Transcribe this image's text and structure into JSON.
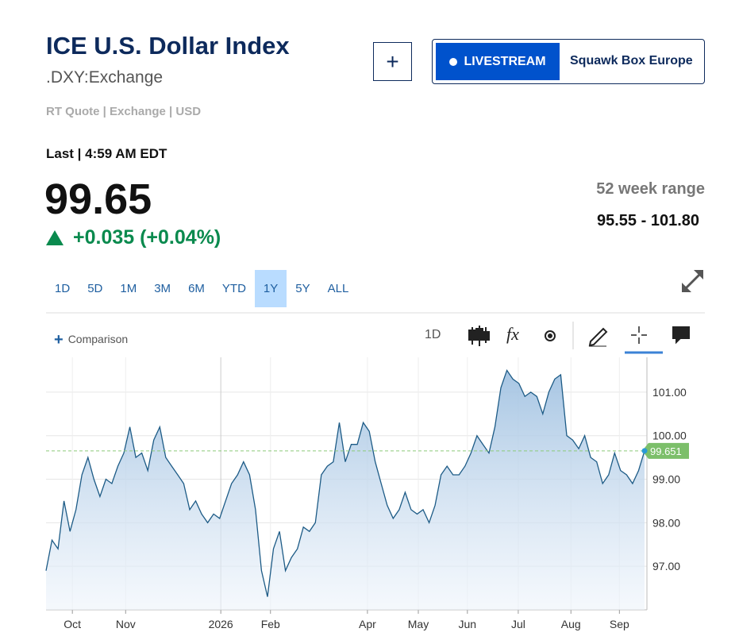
{
  "header": {
    "title": "ICE U.S. Dollar Index",
    "symbol": ".DXY:Exchange",
    "quote_info": "RT Quote | Exchange | USD",
    "last_label": "Last | 4:59 AM EDT",
    "price": "99.65",
    "change": "+0.035 (+0.04%)",
    "range_label": "52 week range",
    "range_value": "95.55 - 101.80",
    "add_button": "+",
    "livestream": "LIVESTREAM",
    "show": "Squawk Box Europe"
  },
  "ranges": [
    "1D",
    "5D",
    "1M",
    "3M",
    "6M",
    "YTD",
    "1Y",
    "5Y",
    "ALL"
  ],
  "toolbar": {
    "comparison": "Comparison",
    "interval": "1D"
  },
  "chart_data": {
    "type": "line",
    "color": "#1d5b86",
    "xlim": [
      0,
      100
    ],
    "xticks": [
      {
        "value": 4.4,
        "label": "Oct"
      },
      {
        "value": 13.3,
        "label": "Nov"
      },
      {
        "value": 29.2,
        "label": "2026"
      },
      {
        "value": 37.5,
        "label": "Feb"
      },
      {
        "value": 53.7,
        "label": "Apr"
      },
      {
        "value": 62.2,
        "label": "May"
      },
      {
        "value": 70.4,
        "label": "Jun"
      },
      {
        "value": 78.9,
        "label": "Jul"
      },
      {
        "value": 87.7,
        "label": "Aug"
      },
      {
        "value": 95.8,
        "label": "Sep"
      }
    ],
    "ylim": [
      96,
      101.8
    ],
    "yticks": [
      {
        "value": 97,
        "label": "97.00"
      },
      {
        "value": 98,
        "label": "98.00"
      },
      {
        "value": 99,
        "label": "99.00"
      },
      {
        "value": 100,
        "label": "100.00"
      },
      {
        "value": 101,
        "label": "101.00"
      }
    ],
    "grid": true,
    "reference_line": 99.651,
    "series": [
      {
        "values": [
          96.9,
          97.6,
          97.4,
          98.5,
          97.8,
          98.3,
          99.1,
          99.5,
          99.0,
          98.6,
          99.0,
          98.9,
          99.3,
          99.6,
          100.2,
          99.5,
          99.6,
          99.2,
          99.9,
          100.2,
          99.5,
          99.3,
          99.1,
          98.9,
          98.3,
          98.5,
          98.2,
          98.0,
          98.2,
          98.1,
          98.5,
          98.9,
          99.1,
          99.4,
          99.1,
          98.3,
          96.9,
          96.3,
          97.4,
          97.8,
          96.9,
          97.2,
          97.4,
          97.9,
          97.8,
          98.0,
          99.1,
          99.3,
          99.4,
          100.3,
          99.4,
          99.8,
          99.8,
          100.3,
          100.1,
          99.4,
          98.9,
          98.4,
          98.1,
          98.3,
          98.7,
          98.3,
          98.2,
          98.3,
          98.0,
          98.4,
          99.1,
          99.3,
          99.1,
          99.1,
          99.3,
          99.6,
          100.0,
          99.8,
          99.6,
          100.2,
          101.1,
          101.5,
          101.3,
          101.2,
          100.9,
          101.0,
          100.9,
          100.5,
          101.0,
          101.3,
          101.4,
          100.0,
          99.9,
          99.7,
          100.0,
          99.5,
          99.4,
          98.9,
          99.1,
          99.6,
          99.2,
          99.1,
          98.9,
          99.2,
          99.651
        ]
      }
    ]
  }
}
